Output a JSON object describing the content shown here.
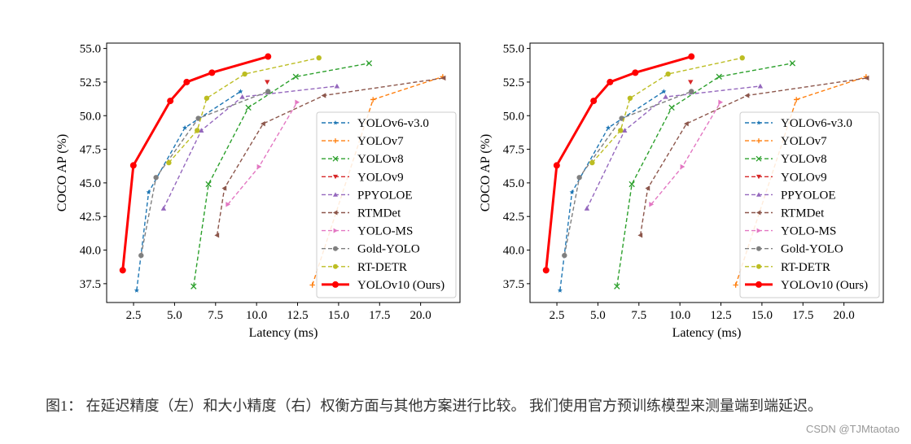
{
  "chart_data": [
    {
      "type": "line",
      "xlabel": "Latency (ms)",
      "ylabel": "COCO AP (%)",
      "xlim": [
        0.86,
        22.4
      ],
      "ylim": [
        36.1,
        55.4
      ],
      "xticks": [
        "2.5",
        "5.0",
        "7.5",
        "10.0",
        "12.5",
        "15.0",
        "17.5",
        "20.0"
      ],
      "yticks": [
        "37.5",
        "40.0",
        "42.5",
        "45.0",
        "47.5",
        "50.0",
        "52.5",
        "55.0"
      ],
      "grid": false,
      "legend_position": "lower-right",
      "series": [
        {
          "name": "YOLOv6-v3.0",
          "color": "#1f77b4",
          "marker": "star",
          "x": [
            2.69,
            3.42,
            5.63,
            9.02
          ],
          "y": [
            37.0,
            44.3,
            49.1,
            51.8
          ]
        },
        {
          "name": "YOLOv7",
          "color": "#ff7f0e",
          "marker": "plus",
          "x": [
            13.4,
            17.1,
            21.35
          ],
          "y": [
            37.4,
            51.2,
            52.9
          ]
        },
        {
          "name": "YOLOv8",
          "color": "#2ca02c",
          "marker": "x",
          "x": [
            6.16,
            7.07,
            9.5,
            12.39,
            16.86
          ],
          "y": [
            37.3,
            44.9,
            50.6,
            52.9,
            53.9
          ]
        },
        {
          "name": "YOLOv9",
          "color": "#d62728",
          "marker": "triangle-down",
          "x": [
            10.65
          ],
          "y": [
            52.5
          ]
        },
        {
          "name": "PPYOLOE",
          "color": "#9467bd",
          "marker": "triangle-up",
          "x": [
            4.33,
            6.63,
            9.13,
            14.9
          ],
          "y": [
            43.1,
            48.9,
            51.4,
            52.2
          ]
        },
        {
          "name": "RTMDet",
          "color": "#8c564b",
          "marker": "triangle-left",
          "x": [
            7.59,
            8.04,
            10.4,
            14.1,
            21.4
          ],
          "y": [
            41.1,
            44.6,
            49.4,
            51.5,
            52.8
          ]
        },
        {
          "name": "YOLO-MS",
          "color": "#e377c2",
          "marker": "triangle-right",
          "x": [
            8.25,
            10.15,
            12.47
          ],
          "y": [
            43.4,
            46.2,
            51.0
          ]
        },
        {
          "name": "Gold-YOLO",
          "color": "#7f7f7f",
          "marker": "circle",
          "x": [
            2.96,
            3.87,
            6.45,
            10.7
          ],
          "y": [
            39.6,
            45.4,
            49.8,
            51.8
          ]
        },
        {
          "name": "RT-DETR",
          "color": "#bcbd22",
          "marker": "circle",
          "x": [
            4.65,
            6.38,
            6.96,
            9.28,
            13.8
          ],
          "y": [
            46.5,
            48.9,
            51.3,
            53.1,
            54.3
          ]
        },
        {
          "name": "YOLOv10 (Ours)",
          "color": "#ff0000",
          "marker": "circle",
          "bold": true,
          "x": [
            1.84,
            2.49,
            4.74,
            5.74,
            7.28,
            10.7
          ],
          "y": [
            38.5,
            46.3,
            51.1,
            52.5,
            53.2,
            54.4
          ]
        }
      ]
    },
    {
      "type": "line",
      "xlabel": "Latency (ms)",
      "ylabel": "COCO AP (%)",
      "xlim": [
        0.86,
        22.4
      ],
      "ylim": [
        36.1,
        55.4
      ],
      "xticks": [
        "2.5",
        "5.0",
        "7.5",
        "10.0",
        "12.5",
        "15.0",
        "17.5",
        "20.0"
      ],
      "yticks": [
        "37.5",
        "40.0",
        "42.5",
        "45.0",
        "47.5",
        "50.0",
        "52.5",
        "55.0"
      ],
      "grid": false,
      "legend_position": "lower-right",
      "series": [
        {
          "name": "YOLOv6-v3.0",
          "color": "#1f77b4",
          "marker": "star",
          "x": [
            2.69,
            3.42,
            5.63,
            9.02
          ],
          "y": [
            37.0,
            44.3,
            49.1,
            51.8
          ]
        },
        {
          "name": "YOLOv7",
          "color": "#ff7f0e",
          "marker": "plus",
          "x": [
            13.4,
            17.1,
            21.35
          ],
          "y": [
            37.4,
            51.2,
            52.9
          ]
        },
        {
          "name": "YOLOv8",
          "color": "#2ca02c",
          "marker": "x",
          "x": [
            6.16,
            7.07,
            9.5,
            12.39,
            16.86
          ],
          "y": [
            37.3,
            44.9,
            50.6,
            52.9,
            53.9
          ]
        },
        {
          "name": "YOLOv9",
          "color": "#d62728",
          "marker": "triangle-down",
          "x": [
            10.65
          ],
          "y": [
            52.5
          ]
        },
        {
          "name": "PPYOLOE",
          "color": "#9467bd",
          "marker": "triangle-up",
          "x": [
            4.33,
            6.63,
            9.13,
            14.9
          ],
          "y": [
            43.1,
            48.9,
            51.4,
            52.2
          ]
        },
        {
          "name": "RTMDet",
          "color": "#8c564b",
          "marker": "triangle-left",
          "x": [
            7.59,
            8.04,
            10.4,
            14.1,
            21.4
          ],
          "y": [
            41.1,
            44.6,
            49.4,
            51.5,
            52.8
          ]
        },
        {
          "name": "YOLO-MS",
          "color": "#e377c2",
          "marker": "triangle-right",
          "x": [
            8.25,
            10.15,
            12.47
          ],
          "y": [
            43.4,
            46.2,
            51.0
          ]
        },
        {
          "name": "Gold-YOLO",
          "color": "#7f7f7f",
          "marker": "circle",
          "x": [
            2.96,
            3.87,
            6.45,
            10.7
          ],
          "y": [
            39.6,
            45.4,
            49.8,
            51.8
          ]
        },
        {
          "name": "RT-DETR",
          "color": "#bcbd22",
          "marker": "circle",
          "x": [
            4.65,
            6.38,
            6.96,
            9.28,
            13.8
          ],
          "y": [
            46.5,
            48.9,
            51.3,
            53.1,
            54.3
          ]
        },
        {
          "name": "YOLOv10 (Ours)",
          "color": "#ff0000",
          "marker": "circle",
          "bold": true,
          "x": [
            1.84,
            2.49,
            4.74,
            5.74,
            7.28,
            10.7
          ],
          "y": [
            38.5,
            46.3,
            51.1,
            52.5,
            53.2,
            54.4
          ]
        }
      ]
    }
  ],
  "caption": "图1： 在延迟精度（左）和大小精度（右）权衡方面与其他方案进行比较。 我们使用官方预训练模型来测量端到端延迟。",
  "watermark": "CSDN @TJMtaotao"
}
